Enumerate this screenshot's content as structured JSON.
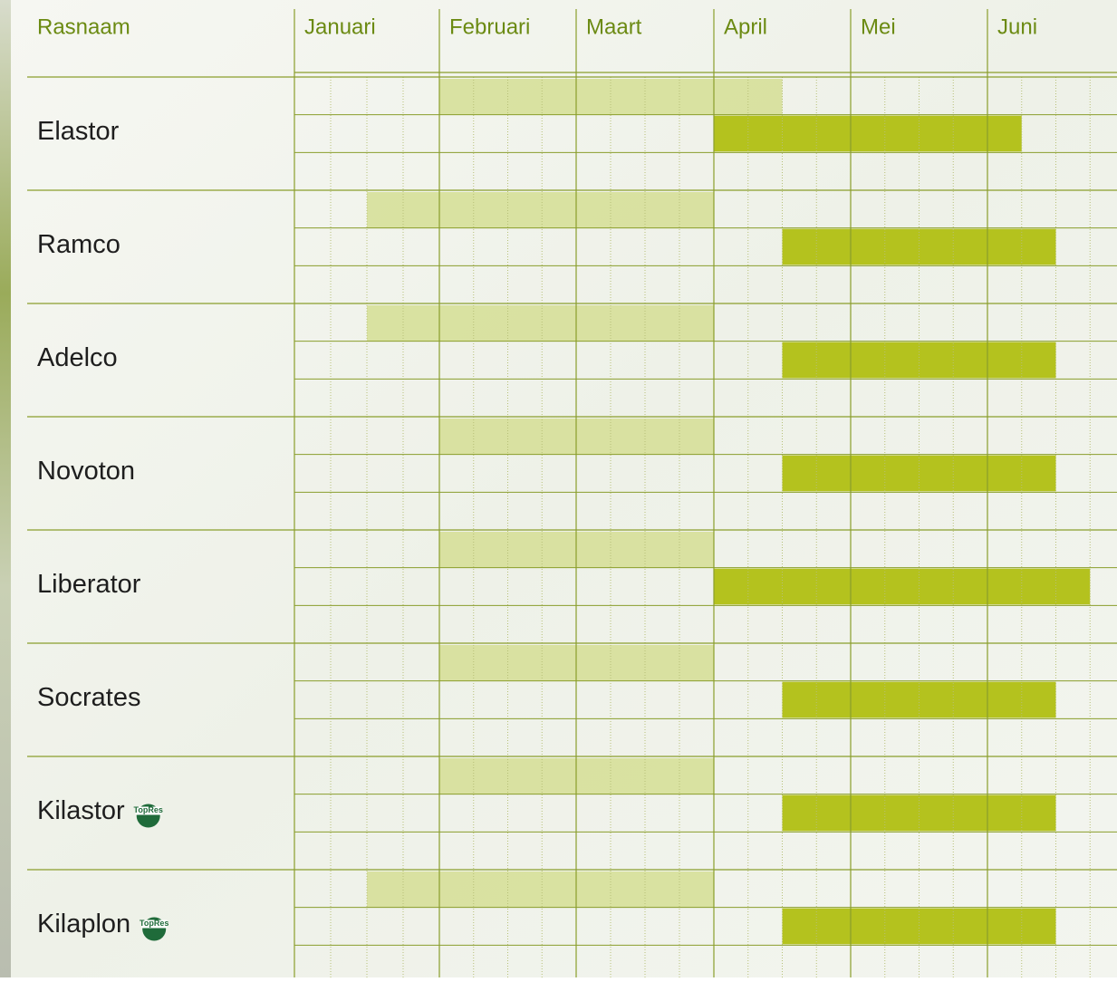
{
  "header": {
    "name_column": "Rasnaam",
    "months": [
      "Januari",
      "Februari",
      "Maart",
      "April",
      "Mei",
      "Juni"
    ]
  },
  "rows": [
    {
      "name": "Elastor",
      "sowing": [
        4,
        14
      ],
      "harvest": [
        12,
        21
      ]
    },
    {
      "name": "Ramco",
      "sowing": [
        2,
        12
      ],
      "harvest": [
        14,
        22
      ]
    },
    {
      "name": "Adelco",
      "sowing": [
        2,
        12
      ],
      "harvest": [
        14,
        22
      ]
    },
    {
      "name": "Novoton",
      "sowing": [
        4,
        12
      ],
      "harvest": [
        14,
        22
      ]
    },
    {
      "name": "Liberator",
      "sowing": [
        4,
        12
      ],
      "harvest": [
        12,
        23
      ]
    },
    {
      "name": "Socrates",
      "sowing": [
        4,
        12
      ],
      "harvest": [
        14,
        22
      ]
    },
    {
      "name": "Kilastor",
      "badge": "TopRes",
      "sowing": [
        4,
        12
      ],
      "harvest": [
        14,
        22
      ]
    },
    {
      "name": "Kilaplon",
      "badge": "TopRes",
      "sowing": [
        2,
        12
      ],
      "harvest": [
        14,
        22
      ]
    }
  ]
}
